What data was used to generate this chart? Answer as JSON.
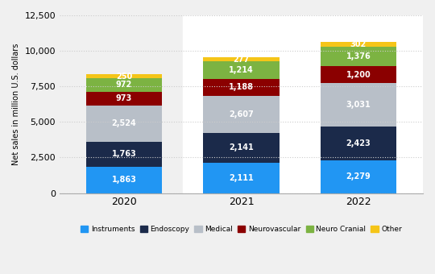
{
  "years": [
    "2020",
    "2021",
    "2022"
  ],
  "categories": [
    "Instruments",
    "Endoscopy",
    "Medical",
    "Neurovascular",
    "Neuro Cranial",
    "Other"
  ],
  "colors": [
    "#2196f3",
    "#1b2a4a",
    "#b8bfc8",
    "#8b0000",
    "#7cb342",
    "#f5c518"
  ],
  "values": {
    "Instruments": [
      1863,
      2111,
      2279
    ],
    "Endoscopy": [
      1763,
      2141,
      2423
    ],
    "Medical": [
      2524,
      2607,
      3031
    ],
    "Neurovascular": [
      973,
      1188,
      1200
    ],
    "Neuro Cranial": [
      972,
      1214,
      1376
    ],
    "Other": [
      250,
      277,
      302
    ]
  },
  "ylim": [
    0,
    12500
  ],
  "yticks": [
    0,
    2500,
    5000,
    7500,
    10000,
    12500
  ],
  "ylabel": "Net sales in million U.S. dollars",
  "plot_bg": "#f0f0f0",
  "white_bg": "#ffffff",
  "grid_color": "#cccccc",
  "text_color": "#ffffff",
  "bar_width": 0.65,
  "white_span_start": 0.5,
  "xlim": [
    -0.55,
    2.55
  ]
}
